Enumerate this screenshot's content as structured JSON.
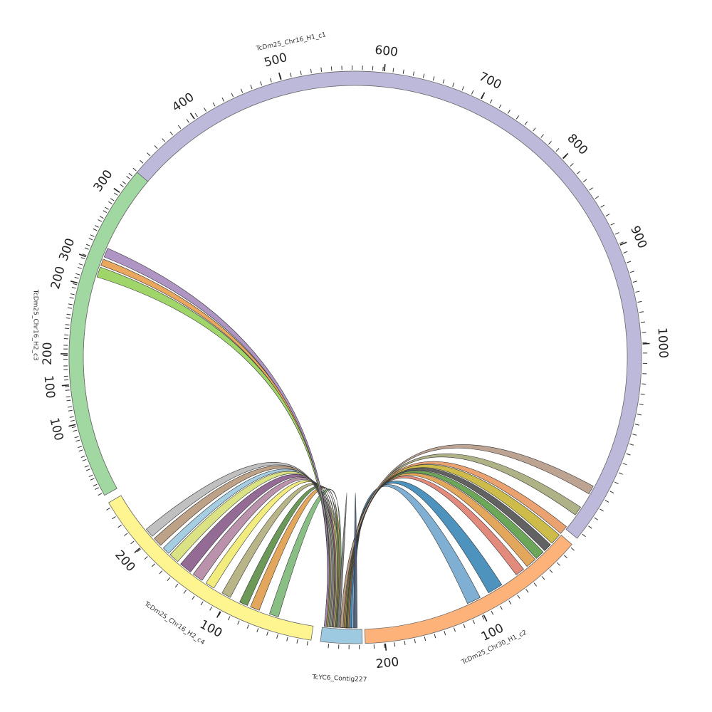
{
  "chart_data": {
    "type": "chord",
    "segments": [
      {
        "id": "c1",
        "name": "TcDm25_Chr16_H1_c1",
        "color": "#bcb9da",
        "start_deg": 152.5,
        "end_deg": 399.2,
        "ticks": [
          {
            "value": 100,
            "label": "100",
            "deg": 174.5
          },
          {
            "value": 200,
            "label": "200",
            "deg": 195.0
          },
          {
            "value": 300,
            "label": "300",
            "deg": 215.0
          },
          {
            "value": 400,
            "label": "400",
            "deg": 236.0
          },
          {
            "value": 500,
            "label": "500",
            "deg": 255.0
          },
          {
            "value": 600,
            "label": "600",
            "deg": 275.8
          },
          {
            "value": 700,
            "label": "700",
            "deg": 296.0
          },
          {
            "value": 800,
            "label": "800",
            "deg": 316.2
          },
          {
            "value": 900,
            "label": "900",
            "deg": 337.0
          },
          {
            "value": 1000,
            "label": "1000",
            "deg": 357.3
          }
        ]
      },
      {
        "id": "c2",
        "name": "TcDm25_Chr30_H1_c2",
        "color": "#fdb27a",
        "start_deg": 400.8,
        "end_deg": 448.0,
        "ticks": [
          {
            "value": 100,
            "label": "100",
            "deg": 423.5
          },
          {
            "value": 200,
            "label": "200",
            "deg": 444.0
          }
        ]
      },
      {
        "id": "c6",
        "name": "TcYC6_Contig227",
        "color": "#9ecae1",
        "start_deg": 448.6,
        "end_deg": 457.0,
        "ticks": []
      },
      {
        "id": "c4",
        "name": "TcDm25_Chr16_H2_c4",
        "color": "#fff590",
        "start_deg": 458.9,
        "end_deg": 509.5,
        "ticks": [
          {
            "value": 100,
            "label": "100",
            "deg": 478.0
          },
          {
            "value": 200,
            "label": "200",
            "deg": 498.5
          }
        ]
      },
      {
        "id": "c3",
        "name": "TcDm25_Chr16_H2_c3",
        "color": "#a1d8a2",
        "start_deg": 511.2,
        "end_deg": 580.3,
        "ticks": [
          {
            "value": 100,
            "label": "100",
            "deg": 526.5
          },
          {
            "value": 200,
            "label": "200",
            "deg": 540.7
          },
          {
            "value": 300,
            "label": "300",
            "deg": 560.5
          }
        ]
      }
    ],
    "links": [
      {
        "from": [
          450.4,
          451.8
        ],
        "to": [
          422.5,
          425.5
        ],
        "color": "#74a9cf"
      },
      {
        "from": [
          450.8,
          452.2
        ],
        "to": [
          417.2,
          420.5
        ],
        "color": "#3f8ab8"
      },
      {
        "from": [
          451.2,
          452.4
        ],
        "to": [
          411.5,
          413.5
        ],
        "color": "#e08172"
      },
      {
        "from": [
          451.4,
          452.6
        ],
        "to": [
          408.3,
          410.6
        ],
        "color": "#e0a04e"
      },
      {
        "from": [
          451.6,
          452.7
        ],
        "to": [
          406.0,
          408.0
        ],
        "color": "#5f9e4a"
      },
      {
        "from": [
          451.8,
          452.8
        ],
        "to": [
          403.8,
          405.6
        ],
        "color": "#555555"
      },
      {
        "from": [
          452.0,
          452.9
        ],
        "to": [
          401.0,
          403.4
        ],
        "color": "#c9b63a"
      },
      {
        "from": [
          452.2,
          453.0
        ],
        "to": [
          398.7,
          400.6
        ],
        "color": "#e89a65"
      },
      {
        "from": [
          452.4,
          453.1
        ],
        "to": [
          393.6,
          395.6
        ],
        "color": "#a8aa7c"
      },
      {
        "from": [
          452.6,
          453.2
        ],
        "to": [
          388.4,
          390.3
        ],
        "color": "#b79b89"
      },
      {
        "from": [
          453.6,
          454.2
        ],
        "to": [
          466.5,
          468.5
        ],
        "color": "#7fba7a"
      },
      {
        "from": [
          453.8,
          454.4
        ],
        "to": [
          470.8,
          472.8
        ],
        "color": "#e0a04e"
      },
      {
        "from": [
          454.0,
          454.6
        ],
        "to": [
          473.5,
          475.3
        ],
        "color": "#5f8f4a"
      },
      {
        "from": [
          454.2,
          454.8
        ],
        "to": [
          477.5,
          479.5
        ],
        "color": "#b2b07e"
      },
      {
        "from": [
          454.4,
          455.0
        ],
        "to": [
          481.5,
          483.5
        ],
        "color": "#f0ea72"
      },
      {
        "from": [
          454.6,
          455.2
        ],
        "to": [
          484.5,
          486.8
        ],
        "color": "#b489a4"
      },
      {
        "from": [
          454.8,
          455.4
        ],
        "to": [
          487.5,
          490.2
        ],
        "color": "#8b5e8b"
      },
      {
        "from": [
          455.0,
          455.6
        ],
        "to": [
          491.0,
          493.2
        ],
        "color": "#d8df7a"
      },
      {
        "from": [
          455.2,
          455.8
        ],
        "to": [
          493.6,
          495.2
        ],
        "color": "#9ecae1"
      },
      {
        "from": [
          455.4,
          456.0
        ],
        "to": [
          496.0,
          498.0
        ],
        "color": "#b89a7e"
      },
      {
        "from": [
          455.6,
          456.2
        ],
        "to": [
          498.6,
          500.6
        ],
        "color": "#bbbbbb"
      },
      {
        "from": [
          455.8,
          456.6
        ],
        "to": [
          557.3,
          559.5
        ],
        "color": "#98d25c"
      },
      {
        "from": [
          456.0,
          456.4
        ],
        "to": [
          559.9,
          561.3
        ],
        "color": "#e8a050"
      },
      {
        "from": [
          456.2,
          456.6
        ],
        "to": [
          561.8,
          563.8
        ],
        "color": "#a78cbf"
      },
      {
        "from": [
          449.6,
          450.3
        ],
        "to": [
          449.6,
          450.3
        ],
        "color": "#4a5a7a"
      },
      {
        "from": [
          453.3,
          453.9
        ],
        "to": [
          453.3,
          453.9
        ],
        "color": "#777777"
      }
    ]
  }
}
